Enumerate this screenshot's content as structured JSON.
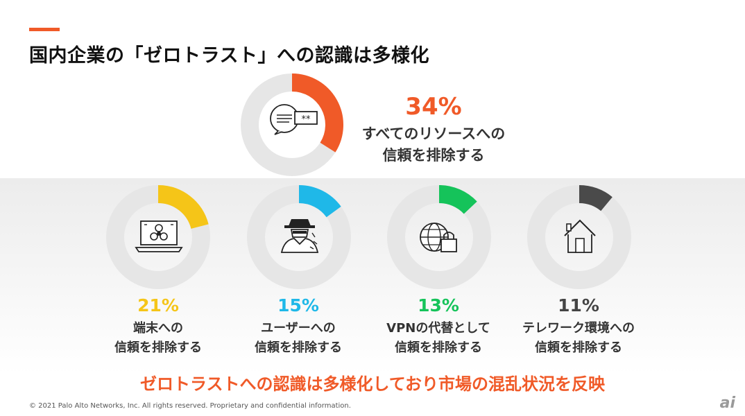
{
  "title": "国内企業の「ゼロトラスト」への認識は多様化",
  "chart_data": {
    "type": "pie",
    "title": "国内企業の「ゼロトラスト」への認識は多様化",
    "items": [
      {
        "key": "all",
        "pct": 34,
        "pct_label": "34%",
        "line1": "すべてのリソースへの",
        "line2": "信頼を排除する",
        "color": "#f05a28",
        "icon": "password-chat-icon"
      },
      {
        "key": "device",
        "pct": 21,
        "pct_label": "21%",
        "line1": "端末への",
        "line2": "信頼を排除する",
        "color": "#f5c518",
        "icon": "laptop-biohazard-icon"
      },
      {
        "key": "user",
        "pct": 15,
        "pct_label": "15%",
        "line1": "ユーザーへの",
        "line2": "信頼を排除する",
        "color": "#1fb8e8",
        "icon": "hacker-icon"
      },
      {
        "key": "vpn",
        "pct": 13,
        "pct_label": "13%",
        "line1": "VPNの代替として",
        "line2": "信頼を排除する",
        "color": "#15c35a",
        "icon": "globe-lock-icon"
      },
      {
        "key": "telework",
        "pct": 11,
        "pct_label": "11%",
        "line1": "テレワーク環境への",
        "line2": "信頼を排除する",
        "color": "#4a4a4a",
        "icon": "house-icon"
      }
    ],
    "track_color": "#e6e6e6"
  },
  "conclusion": "ゼロトラストへの認識は多様化しており市場の混乱状況を反映",
  "copyright": "© 2021 Palo Alto Networks, Inc. All rights reserved. Proprietary and confidential information.",
  "logo_text": "ai"
}
